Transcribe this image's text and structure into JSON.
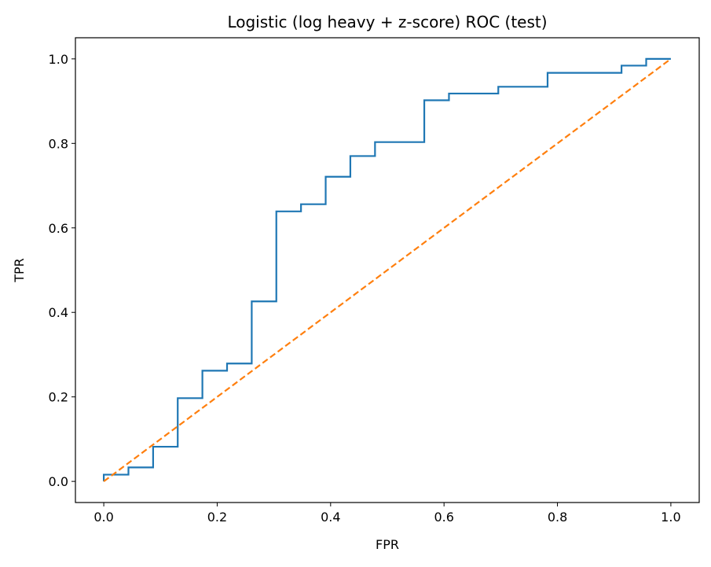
{
  "chart_data": {
    "type": "line",
    "title": "Logistic (log heavy + z-score) ROC (test)",
    "xlabel": "FPR",
    "ylabel": "TPR",
    "xlim": [
      -0.05,
      1.05
    ],
    "ylim": [
      -0.05,
      1.05
    ],
    "xticks": [
      0.0,
      0.2,
      0.4,
      0.6,
      0.8,
      1.0
    ],
    "yticks": [
      0.0,
      0.2,
      0.4,
      0.6,
      0.8,
      1.0
    ],
    "xtick_labels": [
      "0.0",
      "0.2",
      "0.4",
      "0.6",
      "0.8",
      "1.0"
    ],
    "ytick_labels": [
      "0.0",
      "0.2",
      "0.4",
      "0.6",
      "0.8",
      "1.0"
    ],
    "grid": false,
    "legend": "none",
    "series": [
      {
        "style": "steps",
        "color": "#1f77b4",
        "x": [
          0.0,
          0.0,
          0.0435,
          0.0435,
          0.087,
          0.087,
          0.1304,
          0.1304,
          0.1739,
          0.1739,
          0.2174,
          0.2174,
          0.2609,
          0.2609,
          0.3043,
          0.3043,
          0.3478,
          0.3478,
          0.3913,
          0.3913,
          0.4348,
          0.4348,
          0.4783,
          0.4783,
          0.5652,
          0.5652,
          0.6087,
          0.6087,
          0.6957,
          0.6957,
          0.7826,
          0.7826,
          0.913,
          0.913,
          0.9565,
          0.9565,
          1.0
        ],
        "y": [
          0.0,
          0.016,
          0.016,
          0.033,
          0.033,
          0.082,
          0.082,
          0.197,
          0.197,
          0.262,
          0.262,
          0.279,
          0.279,
          0.426,
          0.426,
          0.639,
          0.639,
          0.656,
          0.656,
          0.721,
          0.721,
          0.77,
          0.77,
          0.803,
          0.803,
          0.902,
          0.902,
          0.918,
          0.918,
          0.934,
          0.934,
          0.967,
          0.967,
          0.984,
          0.984,
          1.0,
          1.0
        ]
      },
      {
        "style": "dashed",
        "color": "#ff7f0e",
        "x": [
          0.0,
          1.0
        ],
        "y": [
          0.0,
          1.0
        ]
      }
    ]
  }
}
